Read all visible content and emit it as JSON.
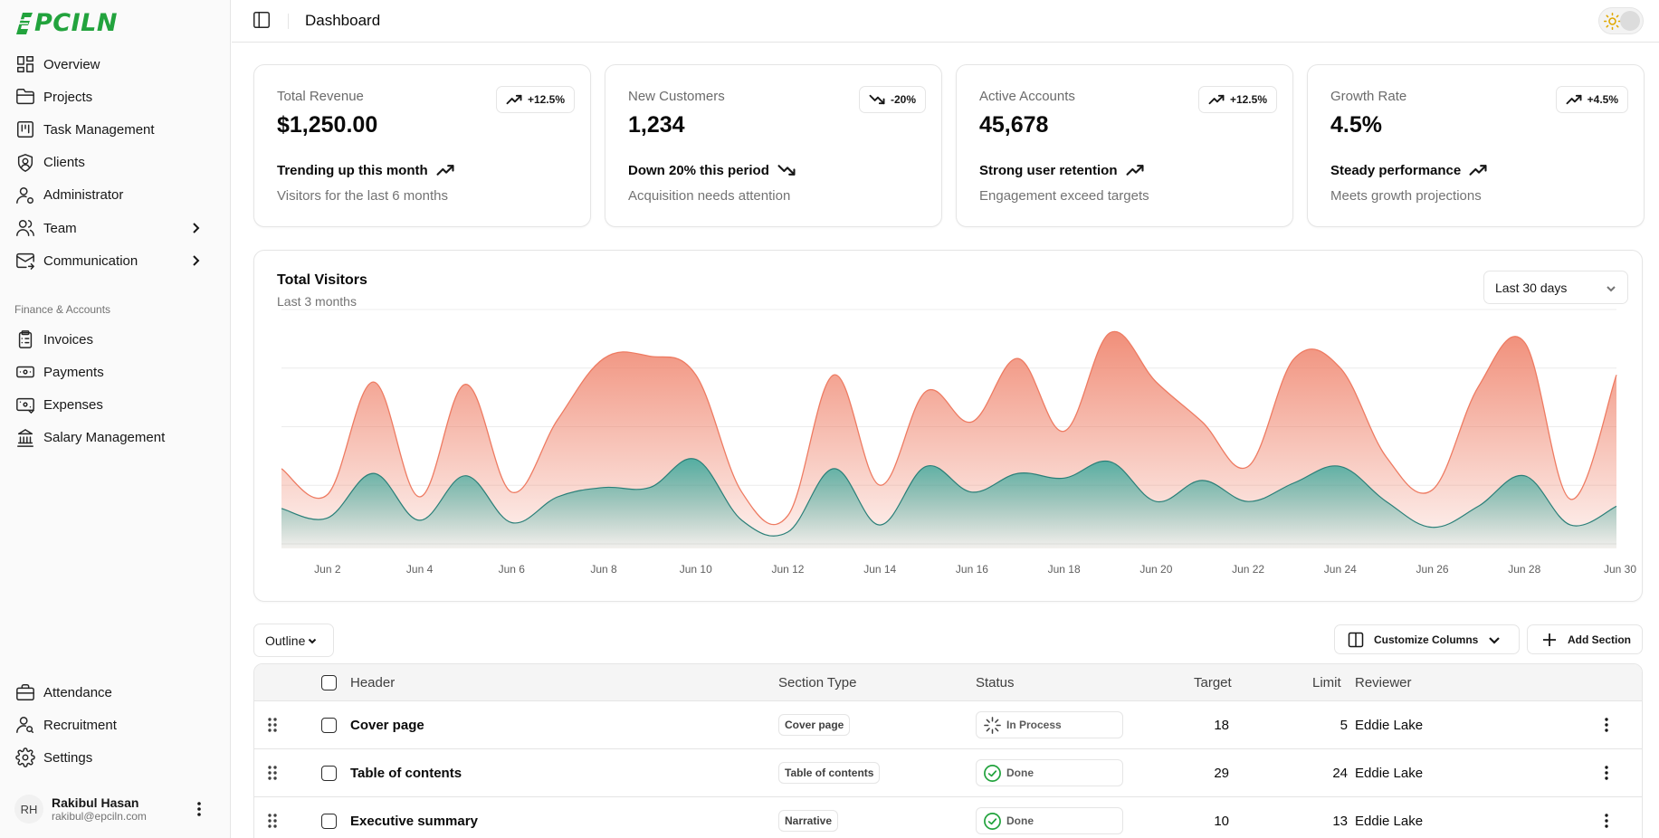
{
  "brand": {
    "name": "EPCILN",
    "logo_text": "PCILN",
    "accent": "#22a33d"
  },
  "header": {
    "title": "Dashboard"
  },
  "sidebar": {
    "main_items": [
      {
        "label": "Overview",
        "icon": "layout-grid-icon"
      },
      {
        "label": "Projects",
        "icon": "folder-icon"
      },
      {
        "label": "Task Management",
        "icon": "kanban-icon"
      },
      {
        "label": "Clients",
        "icon": "shield-user-icon"
      },
      {
        "label": "Administrator",
        "icon": "user-cog-icon"
      },
      {
        "label": "Team",
        "icon": "users-icon",
        "expandable": true
      },
      {
        "label": "Communication",
        "icon": "mail-icon",
        "expandable": true
      }
    ],
    "group_label": "Finance & Accounts",
    "finance_items": [
      {
        "label": "Invoices",
        "icon": "clipboard-list-icon"
      },
      {
        "label": "Payments",
        "icon": "banknote-icon"
      },
      {
        "label": "Expenses",
        "icon": "wallet-cards-icon"
      },
      {
        "label": "Salary Management",
        "icon": "landmark-icon"
      }
    ],
    "bottom_items": [
      {
        "label": "Attendance",
        "icon": "briefcase-icon"
      },
      {
        "label": "Recruitment",
        "icon": "user-search-icon"
      },
      {
        "label": "Settings",
        "icon": "settings-icon"
      }
    ],
    "user": {
      "initials": "RH",
      "name": "Rakibul Hasan",
      "email": "rakibul@epciln.com"
    }
  },
  "cards": [
    {
      "label": "Total Revenue",
      "value": "$1,250.00",
      "badge": "+12.5%",
      "trend": "up",
      "footer": "Trending up this month",
      "sub": "Visitors for the last 6 months"
    },
    {
      "label": "New Customers",
      "value": "1,234",
      "badge": "-20%",
      "trend": "down",
      "footer": "Down 20% this period",
      "sub": "Acquisition needs attention"
    },
    {
      "label": "Active Accounts",
      "value": "45,678",
      "badge": "+12.5%",
      "trend": "up",
      "footer": "Strong user retention",
      "sub": "Engagement exceed targets"
    },
    {
      "label": "Growth Rate",
      "value": "4.5%",
      "badge": "+4.5%",
      "trend": "up",
      "footer": "Steady performance",
      "sub": "Meets growth projections"
    }
  ],
  "visitors": {
    "title": "Total Visitors",
    "subtitle": "Last 3 months",
    "range_label": "Last 30 days"
  },
  "chart_data": {
    "type": "area",
    "title": "Total Visitors",
    "subtitle": "Last 3 months",
    "x_tick_labels": [
      "Jun 2",
      "Jun 4",
      "Jun 6",
      "Jun 8",
      "Jun 10",
      "Jun 12",
      "Jun 14",
      "Jun 16",
      "Jun 18",
      "Jun 20",
      "Jun 22",
      "Jun 24",
      "Jun 26",
      "Jun 28",
      "Jun 30"
    ],
    "x": [
      1,
      2,
      3,
      4,
      5,
      6,
      7,
      8,
      9,
      10,
      11,
      12,
      13,
      14,
      15,
      16,
      17,
      18,
      19,
      20,
      21,
      22,
      23,
      24,
      25,
      26,
      27,
      28,
      29,
      30
    ],
    "ylim": [
      0,
      100
    ],
    "stacked": true,
    "grid": "horizontal",
    "series": [
      {
        "values": [
          17,
          13,
          32,
          12,
          31,
          11,
          22,
          26,
          26,
          38,
          12,
          7,
          34,
          10,
          35,
          24,
          32,
          30,
          37,
          20,
          29,
          20,
          28,
          35,
          20,
          9,
          18,
          31,
          10,
          18
        ],
        "color": "#2ba79a"
      },
      {
        "values": [
          17,
          10,
          39,
          10,
          39,
          13,
          33,
          55,
          56,
          36,
          12,
          7,
          40,
          17,
          32,
          30,
          49,
          20,
          55,
          51,
          25,
          15,
          53,
          42,
          19,
          16,
          51,
          57,
          11,
          56
        ],
        "color": "#ee7b62"
      }
    ]
  },
  "table": {
    "outline_label": "Outline",
    "customize_label": "Customize Columns",
    "add_label": "Add Section",
    "columns": [
      "Header",
      "Section Type",
      "Status",
      "Target",
      "Limit",
      "Reviewer"
    ],
    "rows": [
      {
        "header": "Cover page",
        "type": "Cover page",
        "status": "In Process",
        "status_kind": "loader",
        "target": "18",
        "limit": "5",
        "reviewer": "Eddie Lake"
      },
      {
        "header": "Table of contents",
        "type": "Table of contents",
        "status": "Done",
        "status_kind": "done",
        "target": "29",
        "limit": "24",
        "reviewer": "Eddie Lake"
      },
      {
        "header": "Executive summary",
        "type": "Narrative",
        "status": "Done",
        "status_kind": "done",
        "target": "10",
        "limit": "13",
        "reviewer": "Eddie Lake"
      }
    ]
  }
}
